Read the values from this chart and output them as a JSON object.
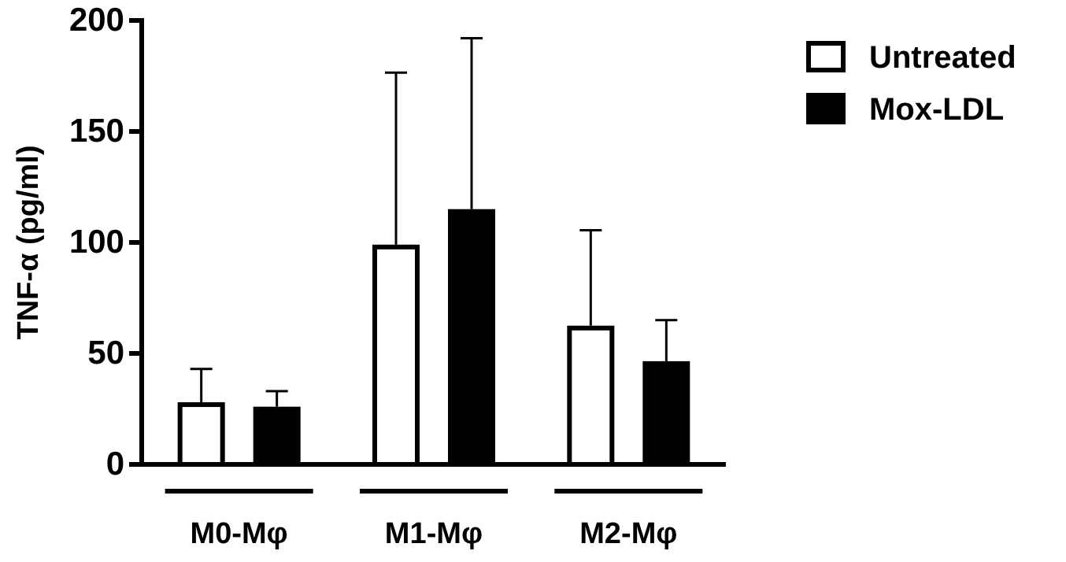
{
  "chart_data": {
    "type": "bar",
    "ylabel": "TNF-α (pg/ml)",
    "categories": [
      "M0-Mφ",
      "M1-Mφ",
      "M2-Mφ"
    ],
    "series": [
      {
        "name": "Untreated",
        "color": "#ffffff",
        "values": [
          28,
          99,
          62.5
        ],
        "errors": [
          [
            28,
            43
          ],
          [
            99,
            176.5
          ],
          [
            62.5,
            105.5
          ]
        ]
      },
      {
        "name": "Mox-LDL",
        "color": "#000000",
        "values": [
          26,
          115,
          46.5
        ],
        "errors": [
          [
            26,
            33
          ],
          [
            115,
            192
          ],
          [
            46.5,
            65
          ]
        ]
      }
    ],
    "ylim": [
      0,
      200
    ],
    "yticks": [
      0,
      50,
      100,
      150,
      200
    ],
    "grid": false,
    "legend": "top right"
  }
}
